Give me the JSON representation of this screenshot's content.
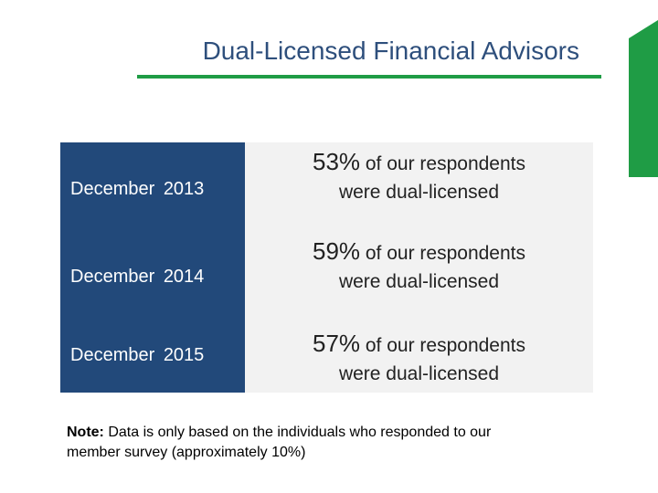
{
  "title": "Dual-Licensed Financial Advisors",
  "rows": [
    {
      "label": "December 2013",
      "percent": "53%",
      "line1_rest": "of our respondents",
      "line2": "were dual-licensed"
    },
    {
      "label": "December 2014",
      "percent": "59%",
      "line1_rest": "of our respondents",
      "line2": "were dual-licensed"
    },
    {
      "label": "December 2015",
      "percent": "57%",
      "line1_rest": "of our respondents",
      "line2": "were dual-licensed"
    }
  ],
  "note": {
    "label": "Note:",
    "text": "Data is only based on the individuals who responded to our member survey (approximately 10%)"
  },
  "colors": {
    "title": "#2e4f7c",
    "accent_green": "#1f9c45",
    "panel_blue": "#22497a",
    "panel_gray": "#f2f2f2"
  }
}
